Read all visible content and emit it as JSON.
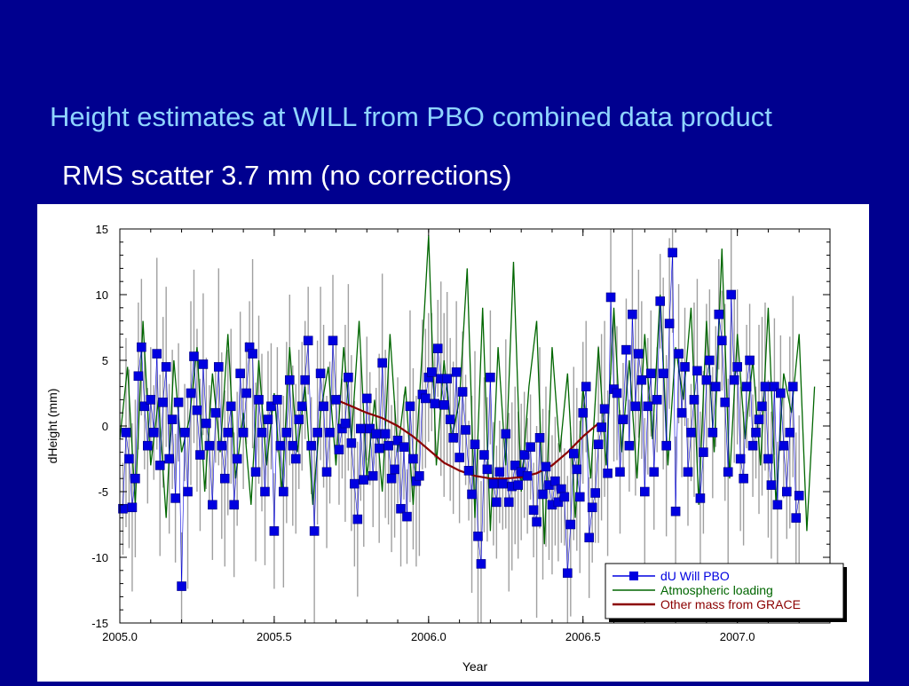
{
  "slide": {
    "title": "Height estimates at WILL from PBO combined data product",
    "subtitle": "RMS scatter 3.7 mm (no corrections)"
  },
  "chart_data": {
    "type": "scatter",
    "xlabel": "Year",
    "ylabel": "dHeight (mm)",
    "xlim": [
      2005.0,
      2007.3
    ],
    "ylim": [
      -15,
      15
    ],
    "x_ticks": [
      "2005.0",
      "2005.5",
      "2006.0",
      "2006.5",
      "2007.0"
    ],
    "y_ticks": [
      "15",
      "10",
      "5",
      "0",
      "-5",
      "-10",
      "-15"
    ],
    "grid": false,
    "legend_position": "bottom-right",
    "series": [
      {
        "name": "dU Will PBO",
        "style": "markers with error bars",
        "color": "#0000e0",
        "errorbar_color": "#a0a0a0",
        "x": [
          2005.01,
          2005.02,
          2005.03,
          2005.04,
          2005.05,
          2005.06,
          2005.07,
          2005.08,
          2005.09,
          2005.1,
          2005.11,
          2005.12,
          2005.13,
          2005.14,
          2005.15,
          2005.16,
          2005.17,
          2005.18,
          2005.19,
          2005.2,
          2005.21,
          2005.22,
          2005.23,
          2005.24,
          2005.25,
          2005.26,
          2005.27,
          2005.28,
          2005.29,
          2005.3,
          2005.31,
          2005.32,
          2005.33,
          2005.34,
          2005.35,
          2005.36,
          2005.37,
          2005.38,
          2005.39,
          2005.4,
          2005.41,
          2005.42,
          2005.43,
          2005.44,
          2005.45,
          2005.46,
          2005.47,
          2005.48,
          2005.49,
          2005.5,
          2005.51,
          2005.52,
          2005.53,
          2005.54,
          2005.55,
          2005.56,
          2005.57,
          2005.58,
          2005.59,
          2005.6,
          2005.61,
          2005.62,
          2005.63,
          2005.64,
          2005.65,
          2005.66,
          2005.67,
          2005.68,
          2005.69,
          2005.7,
          2005.71,
          2005.72,
          2005.73,
          2005.74,
          2005.75,
          2005.76,
          2005.77,
          2005.78,
          2005.79,
          2005.8,
          2005.81,
          2005.82,
          2005.83,
          2005.84,
          2005.85,
          2005.86,
          2005.87,
          2005.88,
          2005.89,
          2005.9,
          2005.91,
          2005.92,
          2005.93,
          2005.94,
          2005.95,
          2005.96,
          2005.97,
          2005.98,
          2005.99,
          2006.0,
          2006.01,
          2006.02,
          2006.03,
          2006.04,
          2006.05,
          2006.06,
          2006.07,
          2006.08,
          2006.09,
          2006.1,
          2006.11,
          2006.12,
          2006.13,
          2006.14,
          2006.15,
          2006.16,
          2006.17,
          2006.18,
          2006.19,
          2006.2,
          2006.21,
          2006.22,
          2006.23,
          2006.24,
          2006.25,
          2006.26,
          2006.27,
          2006.28,
          2006.29,
          2006.3,
          2006.31,
          2006.32,
          2006.33,
          2006.34,
          2006.35,
          2006.36,
          2006.37,
          2006.38,
          2006.39,
          2006.4,
          2006.41,
          2006.42,
          2006.43,
          2006.44,
          2006.45,
          2006.46,
          2006.47,
          2006.48,
          2006.49,
          2006.5,
          2006.51,
          2006.52,
          2006.53,
          2006.54,
          2006.55,
          2006.56,
          2006.57,
          2006.58,
          2006.59,
          2006.6,
          2006.61,
          2006.62,
          2006.63,
          2006.64,
          2006.65,
          2006.66,
          2006.67,
          2006.68,
          2006.69,
          2006.7,
          2006.71,
          2006.72,
          2006.73,
          2006.74,
          2006.75,
          2006.76,
          2006.77,
          2006.78,
          2006.79,
          2006.8,
          2006.81,
          2006.82,
          2006.83,
          2006.84,
          2006.85,
          2006.86,
          2006.87,
          2006.88,
          2006.89,
          2006.9,
          2006.91,
          2006.92,
          2006.93,
          2006.94,
          2006.95,
          2006.96,
          2006.97,
          2006.98,
          2006.99,
          2007.0,
          2007.01,
          2007.02,
          2007.03,
          2007.04,
          2007.05,
          2007.06,
          2007.07,
          2007.08,
          2007.09,
          2007.1,
          2007.11,
          2007.12,
          2007.13,
          2007.14,
          2007.15,
          2007.16,
          2007.17,
          2007.18,
          2007.19,
          2007.2
        ],
        "y": [
          -6.3,
          -0.5,
          -2.5,
          -6.2,
          -4,
          3.8,
          6,
          1.5,
          -1.5,
          2,
          -0.5,
          5.5,
          -3,
          1.8,
          4.5,
          -2.5,
          0.5,
          -5.5,
          1.8,
          -12.2,
          -0.5,
          -5,
          2.5,
          5.3,
          1.2,
          -2.2,
          4.7,
          0.2,
          -1.5,
          -6,
          1,
          4.5,
          -1.5,
          -4,
          -0.5,
          1.5,
          -6,
          -2.5,
          4,
          -0.5,
          2.5,
          6,
          5.5,
          -3.5,
          2,
          -0.5,
          -5,
          0.5,
          1.5,
          -8,
          2,
          -1.5,
          -5,
          -0.5,
          3.5,
          -1.5,
          -2.5,
          0.5,
          1.5,
          3.5,
          6.5,
          -1.5,
          -8,
          -0.5,
          4,
          1.5,
          -3.5,
          -0.5,
          6.5,
          2,
          -1.8,
          -0.2,
          0.2,
          3.7,
          -1.3,
          -4.4,
          -7.1,
          -0.2,
          -4.1,
          2.1,
          -0.2,
          -3.8,
          -0.6,
          -1.7,
          4.8,
          -0.6,
          -1.5,
          -4,
          -3.3,
          -1.1,
          -6.3,
          -1.6,
          -6.9,
          1.5,
          -2.5,
          -4.2,
          -3.8,
          2.4,
          2.1,
          3.7,
          4.1,
          1.7,
          5.9,
          3.6,
          1.6,
          3.6,
          0.5,
          -0.9,
          4.1,
          -2.4,
          2.6,
          -0.3,
          -3.4,
          -5.2,
          -1.4,
          -8.4,
          -10.5,
          -2.2,
          -3.3,
          3.7,
          -4.4,
          -5.8,
          -3.5,
          -4.4,
          -0.6,
          -5.8,
          -4.6,
          -3,
          -4.5,
          -3.5,
          -2.2,
          -3.8,
          -1.6,
          -6.4,
          -7.3,
          -0.9,
          -5.2,
          -3.1,
          -4.5,
          -6,
          -4.2,
          -5.8,
          -4.8,
          -5.4,
          -11.2,
          -7.5,
          -2.1,
          -3.3,
          -5.4,
          1,
          3,
          -8.5,
          -6.2,
          -5.1,
          -1.4,
          -0.1,
          1.3,
          -3.6,
          9.8,
          2.8,
          2.5,
          -3.5,
          0.5,
          5.8,
          -1.5,
          8.5,
          1.5,
          5.5,
          3.5,
          -5,
          1.5,
          4,
          -3.5,
          2,
          9.5,
          4,
          -1.5,
          7.8,
          13.2,
          -6.5,
          5.5,
          1,
          4.5,
          -3.5,
          -0.5,
          2,
          4.2,
          -5.5,
          -2,
          3.5,
          5,
          -0.5,
          3,
          8.5,
          6.5,
          1.8,
          -3.5,
          10,
          3.5,
          4.5,
          -2.5,
          -4,
          3,
          5,
          -1.5,
          -0.5,
          0.5,
          1.5,
          3,
          -2.5,
          -4.5,
          3,
          -6,
          2.5,
          -1.5,
          -5,
          -0.5,
          3,
          -7,
          -5.3
        ]
      },
      {
        "name": "Atmospheric loading",
        "style": "line",
        "color": "#006600",
        "x": [
          2005.0,
          2005.025,
          2005.05,
          2005.075,
          2005.1,
          2005.125,
          2005.15,
          2005.175,
          2005.2,
          2005.225,
          2005.25,
          2005.275,
          2005.3,
          2005.325,
          2005.35,
          2005.375,
          2005.4,
          2005.425,
          2005.45,
          2005.475,
          2005.5,
          2005.525,
          2005.55,
          2005.575,
          2005.6,
          2005.625,
          2005.65,
          2005.675,
          2005.7,
          2005.725,
          2005.75,
          2005.775,
          2005.8,
          2005.825,
          2005.85,
          2005.875,
          2005.9,
          2005.925,
          2005.95,
          2005.975,
          2006.0,
          2006.025,
          2006.05,
          2006.075,
          2006.1,
          2006.125,
          2006.15,
          2006.175,
          2006.2,
          2006.225,
          2006.25,
          2006.275,
          2006.3,
          2006.325,
          2006.35,
          2006.375,
          2006.4,
          2006.425,
          2006.45,
          2006.475,
          2006.5,
          2006.525,
          2006.55,
          2006.575,
          2006.6,
          2006.625,
          2006.65,
          2006.675,
          2006.7,
          2006.725,
          2006.75,
          2006.775,
          2006.8,
          2006.825,
          2006.85,
          2006.875,
          2006.9,
          2006.925,
          2006.95,
          2006.975,
          2007.0,
          2007.025,
          2007.05,
          2007.075,
          2007.1,
          2007.125,
          2007.15,
          2007.175,
          2007.2,
          2007.225,
          2007.25
        ],
        "y": [
          -1,
          4.5,
          -6,
          8,
          -3,
          2,
          -7,
          5,
          -2,
          0.5,
          6,
          -5,
          4,
          -2,
          7,
          -4,
          1,
          -6,
          5,
          -3,
          2.5,
          -5,
          6,
          -2,
          3,
          -6,
          1,
          4.5,
          -3,
          6,
          -1,
          8,
          -4,
          2,
          -5,
          7,
          -2,
          3,
          -6,
          4,
          14.5,
          -3,
          5,
          -1,
          2,
          12,
          -7,
          9,
          -8,
          6,
          -3,
          12.5,
          -5,
          3,
          8,
          -9,
          6,
          -2,
          4,
          -7,
          3,
          -4,
          6,
          -3,
          9,
          -2,
          5,
          -4,
          7,
          -1,
          10,
          -3,
          6,
          2,
          9,
          -6,
          8,
          -2,
          13.5,
          -4,
          7,
          -1,
          5,
          -3,
          9,
          -6,
          4,
          1,
          7,
          -8,
          3
        ]
      },
      {
        "name": "Other mass from GRACE",
        "style": "line",
        "color": "#8b0000",
        "x": [
          2005.7,
          2005.75,
          2005.8,
          2005.85,
          2005.9,
          2005.95,
          2006.0,
          2006.05,
          2006.1,
          2006.15,
          2006.2,
          2006.25,
          2006.3,
          2006.35,
          2006.4,
          2006.45,
          2006.5,
          2006.55
        ],
        "y": [
          2.0,
          1.5,
          1.0,
          0.6,
          0.0,
          -0.8,
          -1.8,
          -2.8,
          -3.4,
          -3.8,
          -4.0,
          -4.0,
          -3.9,
          -3.6,
          -3.0,
          -2.0,
          -0.8,
          0.2
        ]
      }
    ]
  }
}
